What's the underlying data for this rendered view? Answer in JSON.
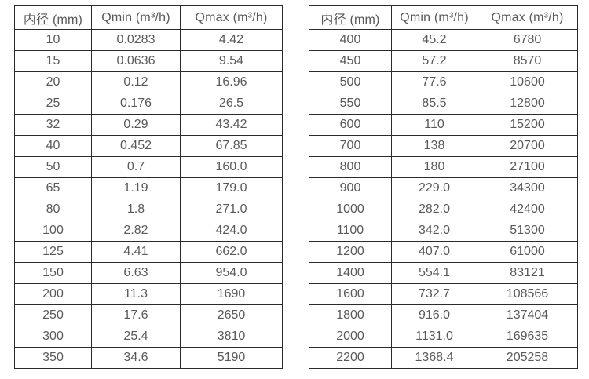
{
  "colors": {
    "background": "#ffffff",
    "text": "#595959",
    "border": "#2b2b2b"
  },
  "tables": [
    {
      "name": "flow-rate-table-small-diameters",
      "headers": [
        "内径 (mm)",
        "Qmin (m³/h)",
        "Qmax (m³/h)"
      ],
      "rows": [
        [
          "10",
          "0.0283",
          "4.42"
        ],
        [
          "15",
          "0.0636",
          "9.54"
        ],
        [
          "20",
          "0.12",
          "16.96"
        ],
        [
          "25",
          "0.176",
          "26.5"
        ],
        [
          "32",
          "0.29",
          "43.42"
        ],
        [
          "40",
          "0.452",
          "67.85"
        ],
        [
          "50",
          "0.7",
          "160.0"
        ],
        [
          "65",
          "1.19",
          "179.0"
        ],
        [
          "80",
          "1.8",
          "271.0"
        ],
        [
          "100",
          "2.82",
          "424.0"
        ],
        [
          "125",
          "4.41",
          "662.0"
        ],
        [
          "150",
          "6.63",
          "954.0"
        ],
        [
          "200",
          "11.3",
          "1690"
        ],
        [
          "250",
          "17.6",
          "2650"
        ],
        [
          "300",
          "25.4",
          "3810"
        ],
        [
          "350",
          "34.6",
          "5190"
        ]
      ]
    },
    {
      "name": "flow-rate-table-large-diameters",
      "headers": [
        "内径 (mm)",
        "Qmin (m³/h)",
        "Qmax (m³/h)"
      ],
      "rows": [
        [
          "400",
          "45.2",
          "6780"
        ],
        [
          "450",
          "57.2",
          "8570"
        ],
        [
          "500",
          "77.6",
          "10600"
        ],
        [
          "550",
          "85.5",
          "12800"
        ],
        [
          "600",
          "110",
          "15200"
        ],
        [
          "700",
          "138",
          "20700"
        ],
        [
          "800",
          "180",
          "27100"
        ],
        [
          "900",
          "229.0",
          "34300"
        ],
        [
          "1000",
          "282.0",
          "42400"
        ],
        [
          "1100",
          "342.0",
          "51300"
        ],
        [
          "1200",
          "407.0",
          "61000"
        ],
        [
          "1400",
          "554.1",
          "83121"
        ],
        [
          "1600",
          "732.7",
          "108566"
        ],
        [
          "1800",
          "916.0",
          "137404"
        ],
        [
          "2000",
          "1131.0",
          "169635"
        ],
        [
          "2200",
          "1368.4",
          "205258"
        ]
      ]
    }
  ]
}
